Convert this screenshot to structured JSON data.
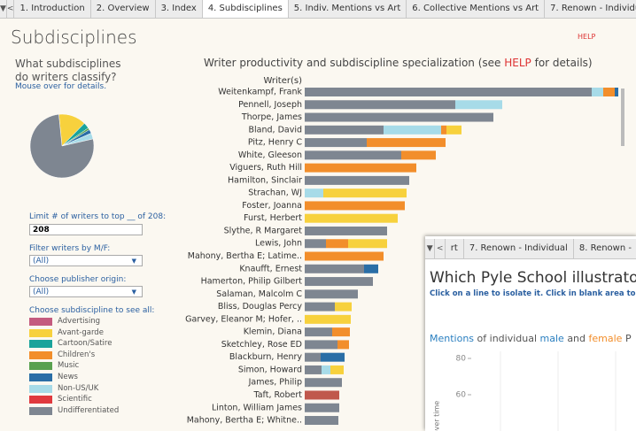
{
  "tabs": [
    "1. Introduction",
    "2. Overview",
    "3. Index",
    "4. Subdisciplines",
    "5. Indiv. Mentions vs Art",
    "6. Collective Mentions vs Art",
    "7. Renown - Individual",
    "8. R"
  ],
  "active_tab": 3,
  "header": {
    "title": "Subdisciplines",
    "help": "HELP"
  },
  "left": {
    "question": "What subdisciplines do writers classify?",
    "hint": "Mouse over for details.",
    "pie": [
      {
        "name": "Avant-garde",
        "color": "#f7d13d",
        "value": 14
      },
      {
        "name": "Cartoon/Satire",
        "color": "#1aa39b",
        "value": 3
      },
      {
        "name": "Music",
        "color": "#59a14f",
        "value": 1
      },
      {
        "name": "News",
        "color": "#2a6ea6",
        "value": 2
      },
      {
        "name": "Non-US/UK",
        "color": "#a7dbe8",
        "value": 3
      },
      {
        "name": "Undifferentiated",
        "color": "#7e8691",
        "value": 77
      }
    ],
    "limit_label": "Limit # of writers to top __ of 208:",
    "limit_value": "208",
    "filter_label": "Filter writers by M/F:",
    "filter_value": "(All)",
    "origin_label": "Choose publisher origin:",
    "origin_value": "(All)",
    "legend_label": "Choose subdiscipline to see all:",
    "legend": [
      {
        "name": "Advertising",
        "color": "#c45b7f"
      },
      {
        "name": "Avant-garde",
        "color": "#f7d13d"
      },
      {
        "name": "Cartoon/Satire",
        "color": "#1aa39b"
      },
      {
        "name": "Children's",
        "color": "#f28e2b"
      },
      {
        "name": "Music",
        "color": "#59a14f"
      },
      {
        "name": "News",
        "color": "#2a6ea6"
      },
      {
        "name": "Non-US/UK",
        "color": "#a7dbe8"
      },
      {
        "name": "Scientific",
        "color": "#e0393e"
      },
      {
        "name": "Undifferentiated",
        "color": "#7e8691"
      }
    ]
  },
  "chart": {
    "title_before": "Writer productivity and subdiscipline specialization (see",
    "title_help": "HELP",
    "title_after": "for details)",
    "column_header": "Writer(s)",
    "rows": [
      {
        "name": "Weitenkampf, Frank",
        "segments": [
          {
            "color": "#7e8691",
            "value": 162
          },
          {
            "color": "#a7dbe8",
            "value": 6.5
          },
          {
            "color": "#f28e2b",
            "value": 6.5
          },
          {
            "color": "#2a6ea6",
            "value": 2
          }
        ]
      },
      {
        "name": "Pennell, Joseph",
        "segments": [
          {
            "color": "#7e8691",
            "value": 85
          },
          {
            "color": "#a7dbe8",
            "value": 26.5
          }
        ]
      },
      {
        "name": "Thorpe, James",
        "segments": [
          {
            "color": "#7e8691",
            "value": 106.5
          }
        ]
      },
      {
        "name": "Bland, David",
        "segments": [
          {
            "color": "#7e8691",
            "value": 44.5
          },
          {
            "color": "#a7dbe8",
            "value": 32.5
          },
          {
            "color": "#f28e2b",
            "value": 3
          },
          {
            "color": "#f7d13d",
            "value": 8.5
          }
        ]
      },
      {
        "name": "Pitz, Henry C",
        "segments": [
          {
            "color": "#7e8691",
            "value": 35
          },
          {
            "color": "#f28e2b",
            "value": 44.5
          }
        ]
      },
      {
        "name": "White, Gleeson",
        "segments": [
          {
            "color": "#7e8691",
            "value": 54.5
          },
          {
            "color": "#f28e2b",
            "value": 19.5
          }
        ]
      },
      {
        "name": "Viguers, Ruth Hill",
        "segments": [
          {
            "color": "#f28e2b",
            "value": 63
          }
        ]
      },
      {
        "name": "Hamilton, Sinclair",
        "segments": [
          {
            "color": "#7e8691",
            "value": 59
          }
        ]
      },
      {
        "name": "Strachan, WJ",
        "segments": [
          {
            "color": "#a7dbe8",
            "value": 10.5
          },
          {
            "color": "#f7d13d",
            "value": 47
          }
        ]
      },
      {
        "name": "Foster, Joanna",
        "segments": [
          {
            "color": "#f28e2b",
            "value": 56.5
          }
        ]
      },
      {
        "name": "Furst, Herbert",
        "segments": [
          {
            "color": "#f7d13d",
            "value": 52.5
          }
        ]
      },
      {
        "name": "Slythe, R Margaret",
        "segments": [
          {
            "color": "#7e8691",
            "value": 46.5
          }
        ]
      },
      {
        "name": "Lewis, John",
        "segments": [
          {
            "color": "#7e8691",
            "value": 12
          },
          {
            "color": "#f28e2b",
            "value": 12.5
          },
          {
            "color": "#f7d13d",
            "value": 22
          }
        ]
      },
      {
        "name": "Mahony, Bertha E; Latime..",
        "segments": [
          {
            "color": "#f28e2b",
            "value": 44.5
          }
        ]
      },
      {
        "name": "Knaufft, Ernest",
        "segments": [
          {
            "color": "#7e8691",
            "value": 33.5
          },
          {
            "color": "#2a6ea6",
            "value": 8
          }
        ]
      },
      {
        "name": "Hamerton, Philip Gilbert",
        "segments": [
          {
            "color": "#7e8691",
            "value": 38.5
          }
        ]
      },
      {
        "name": "Salaman, Malcolm C",
        "segments": [
          {
            "color": "#7e8691",
            "value": 30
          }
        ]
      },
      {
        "name": "Bliss, Douglas Percy",
        "segments": [
          {
            "color": "#7e8691",
            "value": 17
          },
          {
            "color": "#f7d13d",
            "value": 9.5
          }
        ]
      },
      {
        "name": "Garvey, Eleanor M; Hofer, ..",
        "segments": [
          {
            "color": "#f7d13d",
            "value": 26
          }
        ]
      },
      {
        "name": "Klemin, Diana",
        "segments": [
          {
            "color": "#7e8691",
            "value": 15.5
          },
          {
            "color": "#f28e2b",
            "value": 10
          }
        ]
      },
      {
        "name": "Sketchley, Rose ED",
        "segments": [
          {
            "color": "#7e8691",
            "value": 18.5
          },
          {
            "color": "#f28e2b",
            "value": 6.5
          }
        ]
      },
      {
        "name": "Blackburn, Henry",
        "segments": [
          {
            "color": "#7e8691",
            "value": 9
          },
          {
            "color": "#2a6ea6",
            "value": 13.5
          }
        ]
      },
      {
        "name": "Simon, Howard",
        "segments": [
          {
            "color": "#7e8691",
            "value": 9.5
          },
          {
            "color": "#a7dbe8",
            "value": 5
          },
          {
            "color": "#f7d13d",
            "value": 7.5
          }
        ]
      },
      {
        "name": "James, Philip",
        "segments": [
          {
            "color": "#7e8691",
            "value": 21
          }
        ]
      },
      {
        "name": "Taft, Robert",
        "segments": [
          {
            "color": "#c0584c",
            "value": 19.5
          }
        ]
      },
      {
        "name": "Linton, William James",
        "segments": [
          {
            "color": "#7e8691",
            "value": 19.5
          }
        ]
      },
      {
        "name": "Mahony, Bertha E; Whitne..",
        "segments": [
          {
            "color": "#7e8691",
            "value": 19
          }
        ]
      }
    ]
  },
  "overlay": {
    "tabs": [
      "rt",
      "7. Renown - Individual",
      "8. Renown -"
    ],
    "title": "Which Pyle School illustrators c",
    "instruction": "Click on a line to isolate it. Click in blank area to rest",
    "subtitle": {
      "w1": "Mentions",
      "w2": "of individual",
      "w3": "male",
      "w4": "and",
      "w5": "female",
      "w6": "P"
    },
    "yticks": [
      80,
      60
    ],
    "axis_label": "over time"
  }
}
